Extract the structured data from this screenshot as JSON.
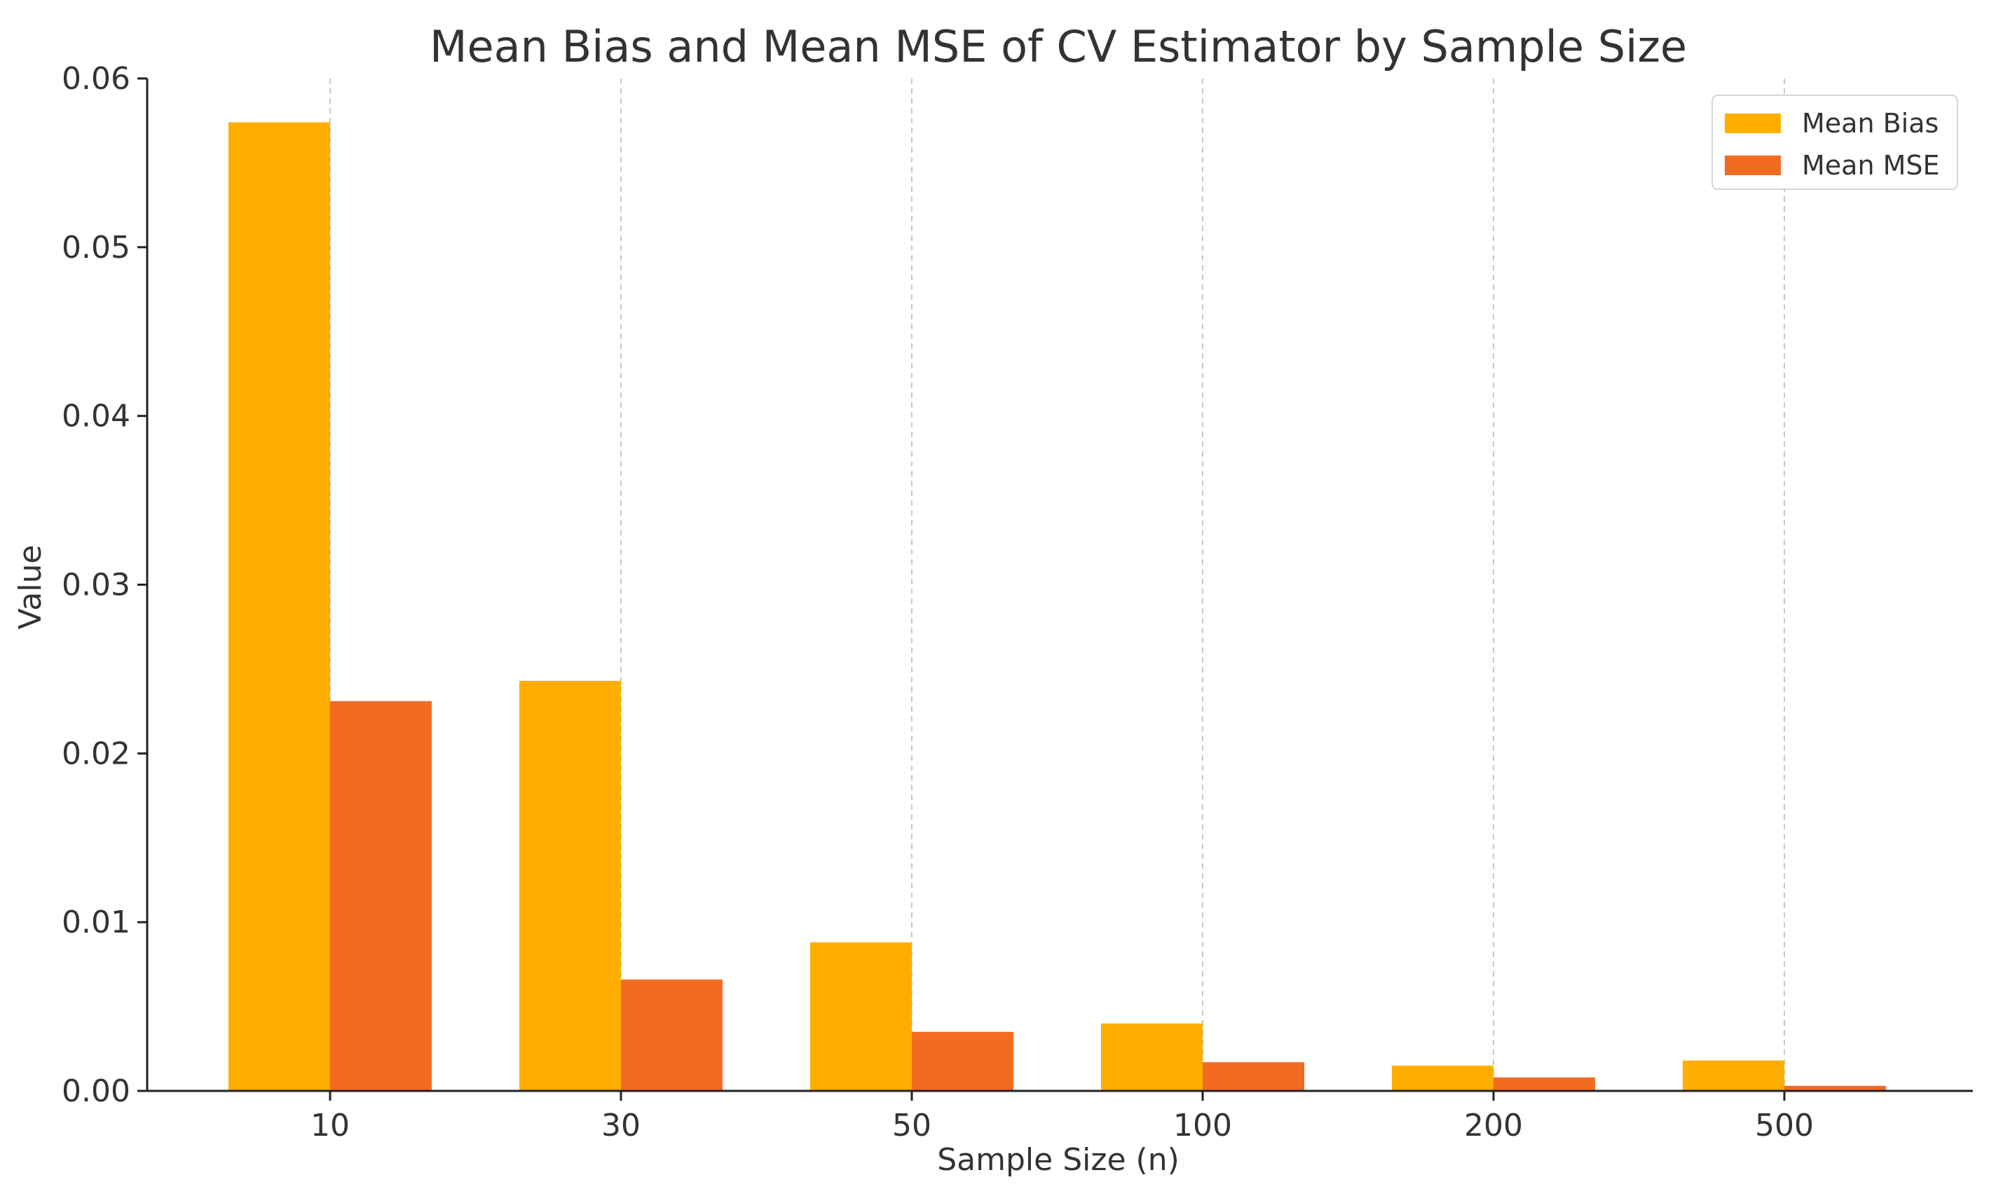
{
  "chart_data": {
    "type": "bar",
    "title": "Mean Bias and Mean MSE of CV Estimator by Sample Size",
    "xlabel": "Sample Size (n)",
    "ylabel": "Value",
    "categories": [
      "10",
      "30",
      "50",
      "100",
      "200",
      "500"
    ],
    "series": [
      {
        "name": "Mean Bias",
        "color": "#FFAE00",
        "values": [
          0.0574,
          0.0243,
          0.0088,
          0.004,
          0.0015,
          0.0018
        ]
      },
      {
        "name": "Mean MSE",
        "color": "#F26B21",
        "values": [
          0.0231,
          0.0066,
          0.0035,
          0.0017,
          0.0008,
          0.0003
        ]
      }
    ],
    "ylim": [
      0,
      0.06
    ],
    "yticks": [
      "0.00",
      "0.01",
      "0.02",
      "0.03",
      "0.04",
      "0.05",
      "0.06"
    ],
    "grid": "x-dashed",
    "legend_position": "top-right"
  }
}
